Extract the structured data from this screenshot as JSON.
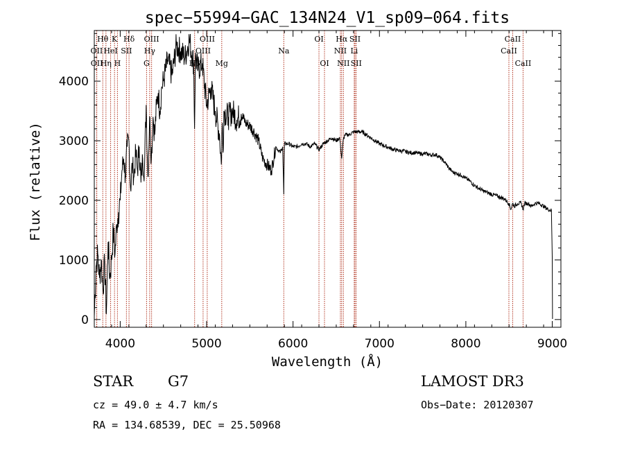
{
  "chart_data": {
    "type": "line",
    "title": "spec−55994−GAC_134N24_V1_sp09−064.fits",
    "xlabel": "Wavelength (Å)",
    "ylabel": "Flux (relative)",
    "xlim": [
      3700,
      9100
    ],
    "ylim": [
      -130,
      4850
    ],
    "xticks": [
      4000,
      5000,
      6000,
      7000,
      8000,
      9000
    ],
    "yticks": [
      0,
      1000,
      2000,
      3000,
      4000
    ],
    "grid": false,
    "series": [
      {
        "name": "flux",
        "x": [
          3700,
          3720,
          3740,
          3760,
          3780,
          3800,
          3820,
          3840,
          3860,
          3880,
          3900,
          3920,
          3940,
          3960,
          3980,
          4000,
          4020,
          4040,
          4060,
          4080,
          4100,
          4120,
          4140,
          4160,
          4180,
          4200,
          4220,
          4240,
          4260,
          4280,
          4300,
          4320,
          4340,
          4360,
          4380,
          4400,
          4420,
          4440,
          4460,
          4480,
          4500,
          4550,
          4600,
          4650,
          4700,
          4750,
          4800,
          4850,
          4860,
          4870,
          4900,
          4950,
          5000,
          5050,
          5100,
          5150,
          5170,
          5180,
          5190,
          5200,
          5250,
          5300,
          5350,
          5400,
          5450,
          5500,
          5550,
          5600,
          5650,
          5700,
          5750,
          5800,
          5850,
          5880,
          5893,
          5900,
          5950,
          6000,
          6050,
          6100,
          6150,
          6200,
          6250,
          6300,
          6350,
          6400,
          6450,
          6500,
          6540,
          6563,
          6580,
          6600,
          6650,
          6700,
          6750,
          6800,
          6850,
          6900,
          6950,
          7000,
          7050,
          7100,
          7150,
          7200,
          7250,
          7300,
          7350,
          7400,
          7450,
          7500,
          7550,
          7600,
          7650,
          7700,
          7750,
          7800,
          7850,
          7900,
          7950,
          8000,
          8050,
          8100,
          8150,
          8200,
          8250,
          8300,
          8350,
          8400,
          8450,
          8498,
          8520,
          8542,
          8560,
          8600,
          8640,
          8662,
          8680,
          8720,
          8760,
          8800,
          8850,
          8900,
          8950,
          8990,
          9000,
          9003
        ],
        "values": [
          50,
          900,
          1100,
          700,
          1000,
          500,
          950,
          100,
          1300,
          700,
          1000,
          1500,
          1100,
          1600,
          1800,
          2000,
          2500,
          2700,
          2400,
          2900,
          3000,
          2200,
          2600,
          2400,
          2800,
          2500,
          2900,
          2300,
          2700,
          2500,
          3600,
          2400,
          3400,
          2700,
          3400,
          3100,
          3600,
          3800,
          3500,
          3900,
          4000,
          4350,
          4100,
          4600,
          4500,
          4400,
          4700,
          4300,
          3200,
          4400,
          4200,
          4300,
          3600,
          3900,
          3500,
          3100,
          2600,
          3300,
          2800,
          3500,
          3400,
          3500,
          3350,
          3450,
          3300,
          3250,
          3150,
          3000,
          2700,
          2600,
          2500,
          2900,
          2800,
          2900,
          2100,
          2950,
          2950,
          2900,
          2900,
          2950,
          2950,
          2900,
          2950,
          2850,
          2950,
          3000,
          3050,
          3000,
          3050,
          2700,
          3000,
          3100,
          3100,
          3150,
          3150,
          3150,
          3100,
          3050,
          3000,
          2950,
          2920,
          2890,
          2860,
          2840,
          2830,
          2820,
          2800,
          2800,
          2790,
          2780,
          2780,
          2760,
          2770,
          2720,
          2650,
          2550,
          2470,
          2450,
          2420,
          2370,
          2320,
          2250,
          2200,
          2160,
          2130,
          2100,
          2080,
          2050,
          2020,
          1950,
          1850,
          1950,
          1900,
          1950,
          1950,
          1850,
          1950,
          1950,
          1900,
          1950,
          1950,
          1900,
          1850,
          1830,
          1050,
          10
        ]
      }
    ],
    "line_markers": [
      {
        "label": "Hθ",
        "wavelength": 3798,
        "row": 0
      },
      {
        "label": "OII",
        "wavelength": 3727,
        "row": 1
      },
      {
        "label": "OII",
        "wavelength": 3729,
        "row": 2
      },
      {
        "label": "Hη",
        "wavelength": 3835,
        "row": 2
      },
      {
        "label": "HeI",
        "wavelength": 3889,
        "row": 1
      },
      {
        "label": "K",
        "wavelength": 3934,
        "row": 0
      },
      {
        "label": "H",
        "wavelength": 3968,
        "row": 2
      },
      {
        "label": "SII",
        "wavelength": 4072,
        "row": 1
      },
      {
        "label": "Hδ",
        "wavelength": 4102,
        "row": 0
      },
      {
        "label": "OIII",
        "wavelength": 4363,
        "row": 0
      },
      {
        "label": "Hγ",
        "wavelength": 4341,
        "row": 1
      },
      {
        "label": "G",
        "wavelength": 4305,
        "row": 2
      },
      {
        "label": "Hβ",
        "wavelength": 4861,
        "row": 2
      },
      {
        "label": "OIII",
        "wavelength": 5007,
        "row": 0
      },
      {
        "label": "OIII",
        "wavelength": 4959,
        "row": 1
      },
      {
        "label": "Mg",
        "wavelength": 5175,
        "row": 2
      },
      {
        "label": "Na",
        "wavelength": 5893,
        "row": 1
      },
      {
        "label": "OI",
        "wavelength": 6300,
        "row": 0
      },
      {
        "label": "OI",
        "wavelength": 6364,
        "row": 2
      },
      {
        "label": "Hα",
        "wavelength": 6563,
        "row": 0
      },
      {
        "label": "NII",
        "wavelength": 6548,
        "row": 1
      },
      {
        "label": "NII",
        "wavelength": 6583,
        "row": 2
      },
      {
        "label": "SII",
        "wavelength": 6717,
        "row": 0
      },
      {
        "label": "Li",
        "wavelength": 6708,
        "row": 1
      },
      {
        "label": "SII",
        "wavelength": 6731,
        "row": 2
      },
      {
        "label": "CaII",
        "wavelength": 8542,
        "row": 0
      },
      {
        "label": "CaII",
        "wavelength": 8498,
        "row": 1
      },
      {
        "label": "CaII",
        "wavelength": 8662,
        "row": 2
      }
    ]
  },
  "info": {
    "object_class": "STAR",
    "subclass": "G7",
    "survey": "LAMOST DR3",
    "redshift": "cz = 49.0 ± 4.7 km/s",
    "obs_date": "Obs−Date: 20120307",
    "coords": "RA = 134.68539, DEC =  25.50968"
  },
  "colors": {
    "marker_line": "#b0301c",
    "axis": "#000000",
    "spectrum": "#000000"
  }
}
